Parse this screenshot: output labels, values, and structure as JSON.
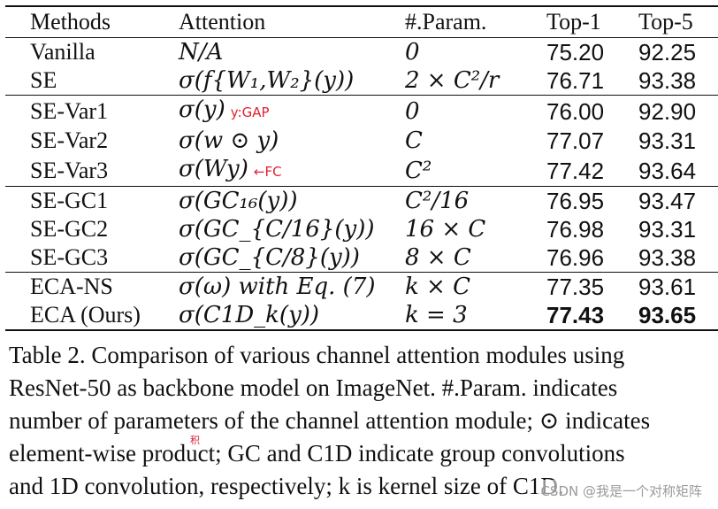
{
  "table": {
    "headers": [
      "Methods",
      "Attention",
      "#.Param.",
      "Top-1",
      "Top-5"
    ],
    "rows": [
      {
        "method": "Vanilla",
        "attention": "N/A",
        "param": "0",
        "top1": "75.20",
        "top5": "92.25",
        "group_start": false
      },
      {
        "method": "SE",
        "attention": "σ(f{W₁,W₂}(y))",
        "param": "2 × C²/r",
        "top1": "76.71",
        "top5": "93.38",
        "group_start": false
      },
      {
        "method": "SE-Var1",
        "attention": "σ(y)",
        "annotation": "y:GAP",
        "param": "0",
        "top1": "76.00",
        "top5": "92.90",
        "group_start": true
      },
      {
        "method": "SE-Var2",
        "attention": "σ(w ⊙ y)",
        "param": "C",
        "top1": "77.07",
        "top5": "93.31",
        "group_start": false
      },
      {
        "method": "SE-Var3",
        "attention": "σ(Wy)",
        "annotation": "←FC",
        "param": "C²",
        "top1": "77.42",
        "top5": "93.64",
        "group_start": false
      },
      {
        "method": "SE-GC1",
        "attention": "σ(GC₁₆(y))",
        "param": "C²/16",
        "top1": "76.95",
        "top5": "93.47",
        "group_start": true
      },
      {
        "method": "SE-GC2",
        "attention": "σ(GC_{C/16}(y))",
        "param": "16 × C",
        "top1": "76.98",
        "top5": "93.31",
        "group_start": false
      },
      {
        "method": "SE-GC3",
        "attention": "σ(GC_{C/8}(y))",
        "param": "8 × C",
        "top1": "76.96",
        "top5": "93.38",
        "group_start": false
      },
      {
        "method": "ECA-NS",
        "attention": "σ(ω) with Eq. (7)",
        "param": "k × C",
        "top1": "77.35",
        "top5": "93.61",
        "group_start": true
      },
      {
        "method": "ECA (Ours)",
        "attention": "σ(C1D_k(y))",
        "param": "k = 3",
        "top1": "77.43",
        "top5": "93.65",
        "group_start": false,
        "bold_scores": true
      }
    ]
  },
  "caption": {
    "lines": [
      "Table 2. Comparison of various channel attention modules using",
      "ResNet-50 as backbone model on ImageNet. #.Param. indicates",
      "number of parameters of the channel attention module; ⊙ indicates",
      "element-wise product; GC and C1D indicate group convolutions",
      "and 1D convolution, respectively; k is kernel size of C1D."
    ]
  },
  "annotation_mark": "积",
  "watermark": "CSDN @我是一个对称矩阵"
}
